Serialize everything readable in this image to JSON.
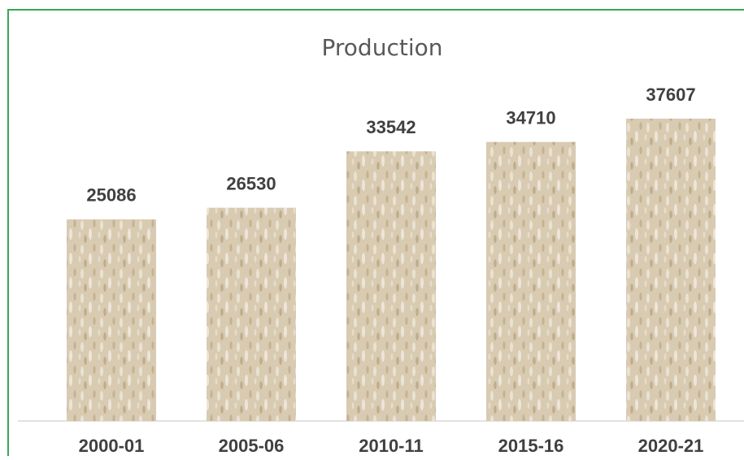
{
  "chart_data": {
    "type": "bar",
    "title": "Production",
    "categories": [
      "2000-01",
      "2005-06",
      "2010-11",
      "2015-16",
      "2020-21"
    ],
    "values": [
      25086,
      26530,
      33542,
      34710,
      37607
    ],
    "color": "#d8cbb2"
  }
}
